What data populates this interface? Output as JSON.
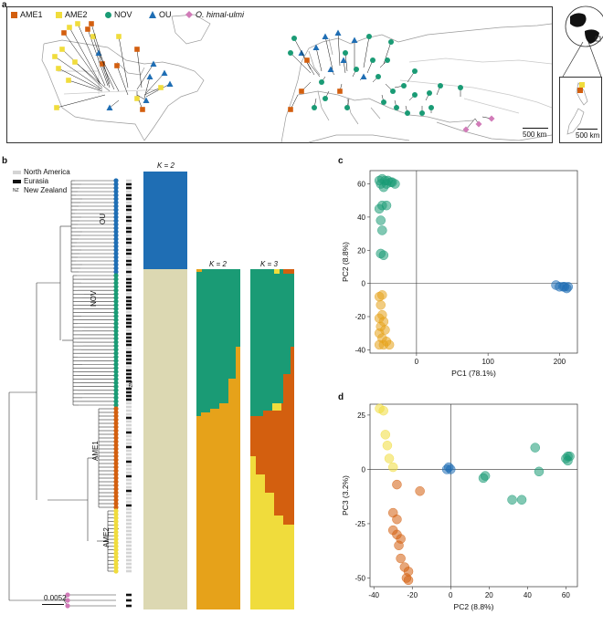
{
  "labels": {
    "a": "a",
    "b": "b",
    "c": "c",
    "d": "d"
  },
  "colors": {
    "AME1": "#d35f0f",
    "AME2": "#f0dc3c",
    "NOV": "#1a9b75",
    "OU": "#1f6eb4",
    "himal": "#d17bb8",
    "beige": "#dcd8b2",
    "orange_k2": "#e6a21a",
    "na": "#d4d4d4",
    "eu": "#111111"
  },
  "map_legend": [
    {
      "key": "AME1",
      "label": "AME1",
      "shape": "square"
    },
    {
      "key": "AME2",
      "label": "AME2",
      "shape": "square"
    },
    {
      "key": "NOV",
      "label": "NOV",
      "shape": "circle"
    },
    {
      "key": "OU",
      "label": "OU",
      "shape": "triangle"
    },
    {
      "key": "himal",
      "label": "O. himal-ulmi",
      "shape": "diamond"
    }
  ],
  "scalebars": {
    "main": "500 km",
    "inset": "500 km"
  },
  "region_legend": [
    {
      "label": "North America",
      "color": "#d4d4d4"
    },
    {
      "label": "Eurasia",
      "color": "#111111"
    },
    {
      "label": "New Zealand",
      "marker": "NZ"
    }
  ],
  "clades": [
    "OU",
    "NOV",
    "AME1",
    "AME2"
  ],
  "tree_scale": "0.0052",
  "nz_tag": "NZ",
  "k_labels": [
    "K = 2",
    "K = 2",
    "K = 3"
  ],
  "chart_data": [
    {
      "type": "scatter",
      "panel": "c",
      "xlabel": "PC1 (78.1%)",
      "ylabel": "PC2 (8.8%)",
      "xlim": [
        -65,
        225
      ],
      "ylim": [
        -42,
        68
      ],
      "xticks": [
        0,
        100,
        200
      ],
      "yticks": [
        -40,
        -20,
        0,
        20,
        40,
        60
      ],
      "series": [
        {
          "name": "NOV",
          "color": "#1a9b75",
          "points": [
            [
              -52,
              62
            ],
            [
              -48,
              63
            ],
            [
              -44,
              62
            ],
            [
              -40,
              62
            ],
            [
              -36,
              61
            ],
            [
              -42,
              60
            ],
            [
              -50,
              60
            ],
            [
              -34,
              61
            ],
            [
              -30,
              60
            ],
            [
              -46,
              58
            ],
            [
              -52,
              45
            ],
            [
              -48,
              47
            ],
            [
              -42,
              47
            ],
            [
              -50,
              38
            ],
            [
              -48,
              32
            ],
            [
              -50,
              18
            ],
            [
              -46,
              17
            ]
          ]
        },
        {
          "name": "OU",
          "color": "#1f6eb4",
          "points": [
            [
              195,
              -1
            ],
            [
              200,
              -2
            ],
            [
              205,
              -2
            ],
            [
              210,
              -3
            ],
            [
              212,
              -2
            ],
            [
              207,
              -2
            ]
          ]
        },
        {
          "name": "AME",
          "color": "#e6a21a",
          "points": [
            [
              -52,
              -8
            ],
            [
              -48,
              -7
            ],
            [
              -50,
              -13
            ],
            [
              -48,
              -19
            ],
            [
              -52,
              -21
            ],
            [
              -46,
              -23
            ],
            [
              -50,
              -26
            ],
            [
              -44,
              -28
            ],
            [
              -52,
              -30
            ],
            [
              -48,
              -33
            ],
            [
              -42,
              -35
            ],
            [
              -52,
              -37
            ],
            [
              -46,
              -37
            ],
            [
              -38,
              -37
            ]
          ]
        }
      ]
    },
    {
      "type": "scatter",
      "panel": "d",
      "xlabel": "PC2 (8.8%)",
      "ylabel": "PC3 (3.2%)",
      "xlim": [
        -42,
        66
      ],
      "ylim": [
        -54,
        30
      ],
      "xticks": [
        -40,
        -20,
        0,
        20,
        40,
        60
      ],
      "yticks": [
        -50,
        -25,
        0,
        25
      ],
      "series": [
        {
          "name": "AME2",
          "color": "#f0dc3c",
          "points": [
            [
              -37,
              28
            ],
            [
              -35,
              27
            ],
            [
              -34,
              16
            ],
            [
              -33,
              11
            ],
            [
              -32,
              5
            ],
            [
              -30,
              1
            ]
          ]
        },
        {
          "name": "AME1",
          "color": "#d35f0f",
          "points": [
            [
              -28,
              -7
            ],
            [
              -16,
              -10
            ],
            [
              -30,
              -20
            ],
            [
              -28,
              -23
            ],
            [
              -30,
              -28
            ],
            [
              -28,
              -30
            ],
            [
              -26,
              -32
            ],
            [
              -27,
              -35
            ],
            [
              -26,
              -41
            ],
            [
              -24,
              -45
            ],
            [
              -22,
              -47
            ],
            [
              -23,
              -50
            ],
            [
              -22,
              -51
            ]
          ]
        },
        {
          "name": "OU",
          "color": "#1f6eb4",
          "points": [
            [
              -2,
              0
            ],
            [
              0,
              0
            ],
            [
              -1,
              1
            ]
          ]
        },
        {
          "name": "NOV",
          "color": "#1a9b75",
          "points": [
            [
              17,
              -4
            ],
            [
              18,
              -3
            ],
            [
              32,
              -14
            ],
            [
              37,
              -14
            ],
            [
              44,
              10
            ],
            [
              46,
              -1
            ],
            [
              60,
              5
            ],
            [
              61,
              6
            ],
            [
              62,
              6
            ],
            [
              61,
              4
            ]
          ]
        }
      ]
    }
  ]
}
